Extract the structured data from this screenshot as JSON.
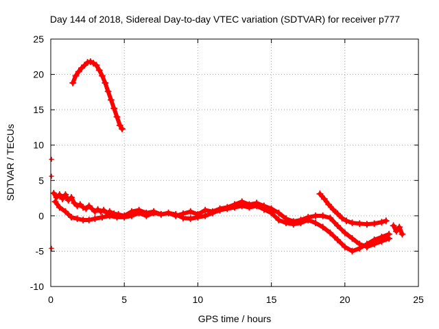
{
  "chart_data": {
    "type": "scatter",
    "title": "Day 144 of 2018, Sidereal Day-to-day VTEC variation (SDTVAR) for receiver p777",
    "xlabel": "GPS time / hours",
    "ylabel": "SDTVAR / TECUs",
    "xlim": [
      0,
      25
    ],
    "ylim": [
      -10,
      25
    ],
    "xticks": [
      0,
      5,
      10,
      15,
      20,
      25
    ],
    "yticks": [
      -10,
      -5,
      0,
      5,
      10,
      15,
      20,
      25
    ],
    "grid": true,
    "legend": "none",
    "marker_color": "#ff0000",
    "series": [
      {
        "name": "arc-high",
        "x": [
          1.5,
          1.7,
          1.9,
          2.1,
          2.3,
          2.5,
          2.7,
          2.9,
          3.1,
          3.3,
          3.5,
          3.7,
          3.9,
          4.1,
          4.3,
          4.5,
          4.7,
          4.85
        ],
        "y": [
          18.8,
          19.8,
          20.4,
          20.9,
          21.3,
          21.7,
          21.8,
          21.6,
          21.3,
          20.6,
          19.8,
          18.8,
          17.6,
          16.4,
          15.2,
          14.0,
          12.8,
          12.3
        ]
      },
      {
        "name": "main-upper",
        "x": [
          0.2,
          0.4,
          0.6,
          0.8,
          1.0,
          1.2,
          1.4,
          1.6,
          1.8,
          2.0,
          2.2,
          2.4,
          2.6,
          2.8,
          3.0,
          3.2,
          3.4,
          3.6,
          3.8,
          4.0,
          4.3,
          4.6,
          5.0,
          5.5,
          6.0,
          6.5,
          7.0,
          7.5,
          8.0,
          8.5,
          9.0,
          9.5,
          10.0,
          10.5,
          11.0,
          11.5,
          12.0,
          12.5,
          13.0,
          13.5,
          14.0,
          14.5,
          15.0,
          15.5,
          16.0,
          16.5,
          17.0,
          17.5,
          18.0,
          18.5,
          19.0,
          19.5,
          20.0,
          20.5,
          21.0,
          21.5,
          22.0,
          22.5,
          23.0
        ],
        "y": [
          3.2,
          2.6,
          3.0,
          2.4,
          3.0,
          2.2,
          2.6,
          1.8,
          1.4,
          1.6,
          1.2,
          1.0,
          1.4,
          1.0,
          0.6,
          0.9,
          0.6,
          0.8,
          0.4,
          0.6,
          0.3,
          0.2,
          0.0,
          0.6,
          0.8,
          0.4,
          0.6,
          0.2,
          0.4,
          0.0,
          0.3,
          0.6,
          0.2,
          0.8,
          0.6,
          1.0,
          1.2,
          1.6,
          2.0,
          1.6,
          1.8,
          1.4,
          1.0,
          0.4,
          -0.4,
          -0.8,
          -0.6,
          -0.2,
          0.0,
          0.0,
          -0.3,
          -1.4,
          -2.4,
          -3.2,
          -4.0,
          -4.4,
          -4.0,
          -3.6,
          -3.2
        ]
      },
      {
        "name": "main-lower",
        "x": [
          0.3,
          0.6,
          1.0,
          1.4,
          1.8,
          2.2,
          2.6,
          3.0,
          3.5,
          4.0,
          4.5,
          5.0,
          5.5,
          6.0,
          6.5,
          7.0,
          7.5,
          8.0,
          8.5,
          9.0,
          9.5,
          10.0,
          10.5,
          11.0,
          11.5,
          12.0,
          12.5,
          13.0,
          13.5,
          14.0,
          14.5,
          15.0,
          15.5,
          16.0,
          16.5,
          17.0,
          17.5,
          18.0,
          18.5,
          19.0,
          19.5,
          20.0,
          20.5,
          21.0,
          21.5,
          22.0,
          22.5,
          23.0
        ],
        "y": [
          2.0,
          1.2,
          0.6,
          -0.2,
          -0.4,
          -0.6,
          -0.6,
          -0.4,
          -0.2,
          0.0,
          -0.2,
          -0.2,
          0.0,
          0.4,
          0.0,
          0.4,
          0.2,
          0.4,
          0.2,
          -0.3,
          -0.4,
          -0.2,
          0.0,
          0.4,
          0.8,
          1.0,
          1.2,
          1.4,
          1.2,
          1.4,
          0.9,
          0.4,
          -0.6,
          -1.0,
          -1.2,
          -1.0,
          -0.6,
          -1.0,
          -1.6,
          -2.4,
          -3.4,
          -4.4,
          -5.0,
          -4.6,
          -4.0,
          -3.4,
          -3.0,
          -2.6
        ]
      },
      {
        "name": "arc-late",
        "x": [
          18.3,
          18.6,
          18.9,
          19.2,
          19.5,
          19.8,
          20.1,
          20.5,
          21.0,
          21.5,
          22.0,
          22.5,
          22.8
        ],
        "y": [
          3.1,
          2.4,
          1.6,
          0.9,
          0.3,
          -0.3,
          -0.7,
          -1.0,
          -1.1,
          -1.2,
          -1.1,
          -0.9,
          -0.7
        ]
      },
      {
        "name": "tail",
        "x": [
          23.3,
          23.5,
          23.7,
          23.9
        ],
        "y": [
          -1.4,
          -2.2,
          -1.6,
          -2.6
        ]
      }
    ],
    "isolated_points": [
      {
        "x": 0.05,
        "y": 8.0
      },
      {
        "x": 0.05,
        "y": 5.6
      },
      {
        "x": 0.05,
        "y": -4.6
      }
    ]
  }
}
